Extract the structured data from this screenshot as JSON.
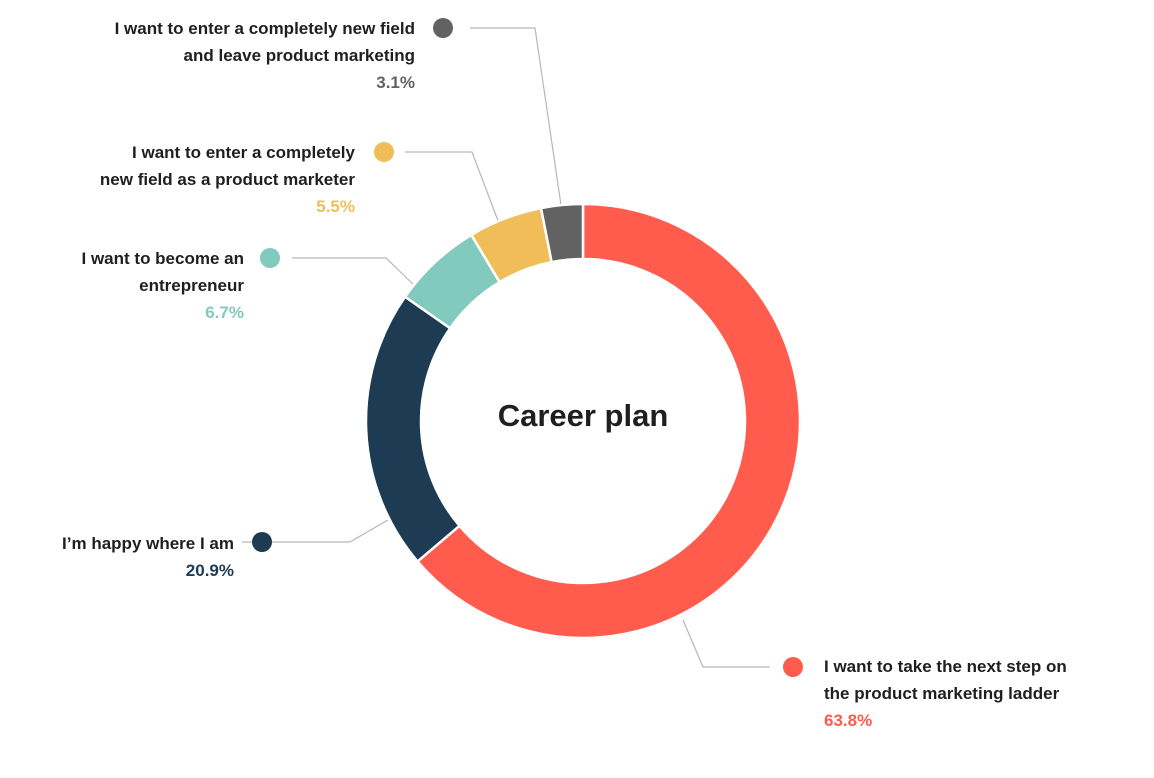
{
  "chart_data": {
    "type": "pie",
    "title": "Career plan",
    "slices": [
      {
        "label_lines": [
          "I want to take the next step on",
          "the product marketing ladder"
        ],
        "value": 63.8,
        "value_label": "63.8%",
        "color": "#FF5C4D"
      },
      {
        "label_lines": [
          "I’m happy where I am"
        ],
        "value": 20.9,
        "value_label": "20.9%",
        "color": "#1D3B53"
      },
      {
        "label_lines": [
          "I want to become an",
          "entrepreneur"
        ],
        "value": 6.7,
        "value_label": "6.7%",
        "color": "#83CABE"
      },
      {
        "label_lines": [
          "I want to enter a completely",
          "new field as a product marketer"
        ],
        "value": 5.5,
        "value_label": "5.5%",
        "color": "#F0BD59"
      },
      {
        "label_lines": [
          "I want to enter a completely new field",
          "and leave product marketing"
        ],
        "value": 3.1,
        "value_label": "3.1%",
        "color": "#626262"
      }
    ],
    "legend": "callouts"
  }
}
